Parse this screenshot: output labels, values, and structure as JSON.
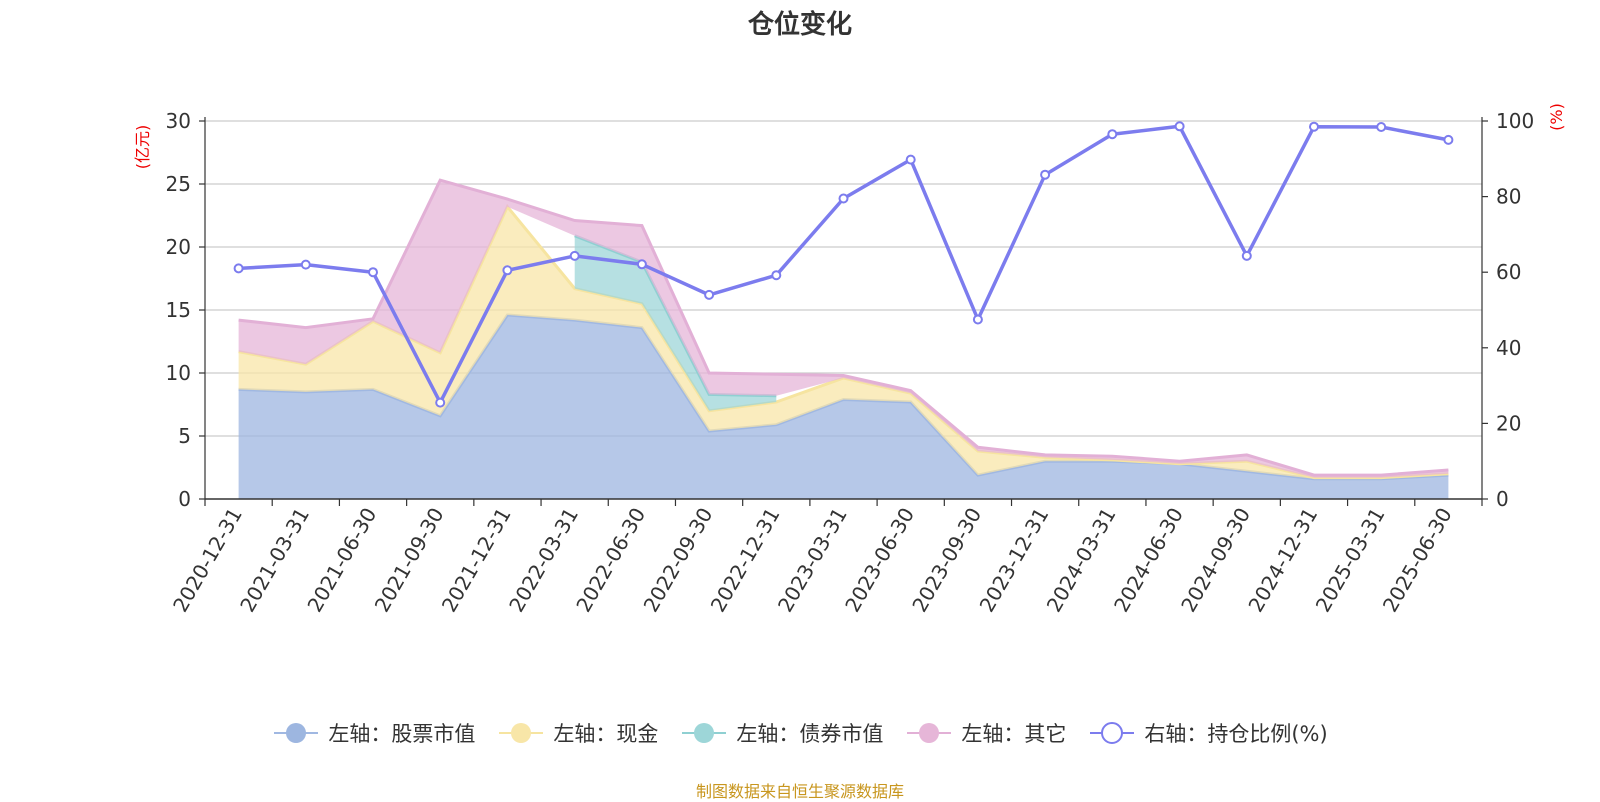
{
  "title": "仓位变化",
  "source": "制图数据来自恒生聚源数据库",
  "colors": {
    "stock": "#9db6e0",
    "stock_line": "#a0b8e2",
    "cash": "#f8e6a8",
    "cash_line": "#f6e4a0",
    "bond": "#9dd6d8",
    "bond_line": "#8fd0d2",
    "other": "#e6b6d8",
    "other_line": "#e2b0d6",
    "ratio": "#7c7cee",
    "unit": "#ee0000"
  },
  "chart_data": {
    "type": "area",
    "title": "仓位变化",
    "categories": [
      "2020-12-31",
      "2021-03-31",
      "2021-06-30",
      "2021-09-30",
      "2021-12-31",
      "2022-03-31",
      "2022-06-30",
      "2022-09-30",
      "2022-12-31",
      "2023-03-31",
      "2023-06-30",
      "2023-09-30",
      "2023-12-31",
      "2024-03-31",
      "2024-06-30",
      "2024-09-30",
      "2024-12-31",
      "2025-03-31",
      "2025-06-30"
    ],
    "left_axis": {
      "unit": "(亿元)",
      "range": [
        0,
        30
      ],
      "ticks": [
        "0",
        "5",
        "10",
        "15",
        "20",
        "25",
        "30"
      ]
    },
    "right_axis": {
      "unit": "(%)",
      "range": [
        0,
        100
      ],
      "ticks": [
        "0",
        "20",
        "40",
        "60",
        "80",
        "100"
      ]
    },
    "stacked_series": [
      {
        "name": "左轴：股票市值",
        "values": [
          8.7,
          8.5,
          8.7,
          6.6,
          14.6,
          14.2,
          13.6,
          5.4,
          5.9,
          7.9,
          7.7,
          1.9,
          3.0,
          3.0,
          2.8,
          2.2,
          1.6,
          1.6,
          1.9
        ]
      },
      {
        "name": "左轴：现金",
        "values": [
          3.0,
          2.2,
          5.4,
          5.0,
          8.6,
          2.5,
          1.9,
          1.6,
          1.8,
          1.7,
          0.7,
          1.9,
          0.3,
          0.1,
          0.0,
          0.8,
          0.1,
          0.1,
          0.1
        ]
      },
      {
        "name": "左轴：债券市值",
        "values": [
          null,
          null,
          null,
          null,
          null,
          4.2,
          3.3,
          1.3,
          0.5,
          null,
          null,
          null,
          null,
          null,
          null,
          null,
          null,
          null,
          null
        ]
      },
      {
        "name": "左轴：其它",
        "values": [
          2.5,
          2.9,
          0.2,
          13.7,
          0.6,
          1.2,
          2.9,
          1.7,
          1.7,
          0.2,
          0.2,
          0.3,
          0.2,
          0.3,
          0.2,
          0.5,
          0.2,
          0.2,
          0.3
        ]
      }
    ],
    "line_series": {
      "name": "右轴：持仓比例(%)",
      "axis": "right",
      "values": [
        61.0,
        62.0,
        60.0,
        25.5,
        60.5,
        64.3,
        62.1,
        54.0,
        59.2,
        79.5,
        89.8,
        47.5,
        85.8,
        96.5,
        98.6,
        64.3,
        98.5,
        98.4,
        95.0
      ]
    },
    "grid": true,
    "legend_position": "bottom"
  },
  "legend": [
    {
      "label": "左轴：股票市值",
      "key": "stock",
      "shape": "circle"
    },
    {
      "label": "左轴：现金",
      "key": "cash",
      "shape": "circle"
    },
    {
      "label": "左轴：债券市值",
      "key": "bond",
      "shape": "circle"
    },
    {
      "label": "左轴：其它",
      "key": "other",
      "shape": "circle"
    },
    {
      "label": "右轴：持仓比例(%)",
      "key": "ratio",
      "shape": "ring"
    }
  ]
}
